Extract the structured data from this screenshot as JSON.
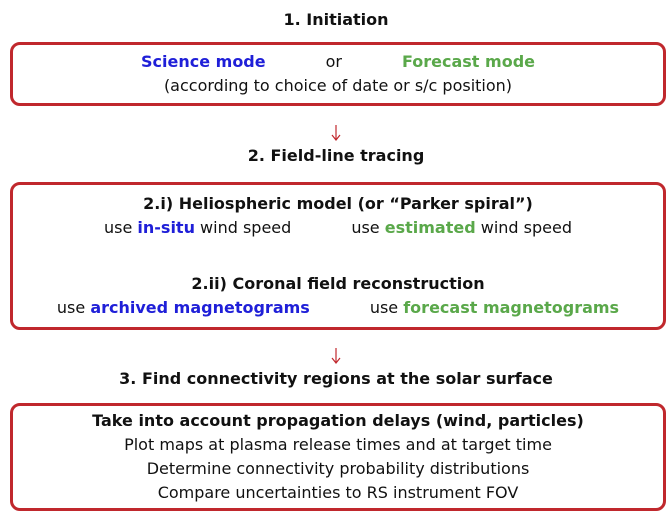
{
  "steps": [
    {
      "title": "1. Initiation",
      "paragraphs": [
        [
          [
            [
              {
                "text": "Science mode",
                "bold": true,
                "color": "#1f1fd8"
              }
            ],
            [
              {
                "text": "or"
              }
            ],
            [
              {
                "text": "Forecast mode",
                "bold": true,
                "color": "#5aa84a"
              }
            ]
          ],
          [
            [
              {
                "text": "(according to choice of date or s/c position)"
              }
            ]
          ]
        ]
      ]
    },
    {
      "title": "2. Field-line tracing",
      "paragraphs": [
        [
          [
            [
              {
                "text": "2.i) Heliospheric model (or “Parker spiral”)",
                "bold": true
              }
            ]
          ],
          [
            [
              {
                "text": "use "
              },
              {
                "text": "in-situ",
                "bold": true,
                "color": "#1f1fd8"
              },
              {
                "text": " wind speed"
              }
            ],
            [
              {
                "text": "use "
              },
              {
                "text": "estimated",
                "bold": true,
                "color": "#5aa84a"
              },
              {
                "text": " wind speed"
              }
            ]
          ]
        ],
        [
          [
            [
              {
                "text": "2.ii) Coronal field reconstruction",
                "bold": true
              }
            ]
          ],
          [
            [
              {
                "text": "use "
              },
              {
                "text": "archived magnetograms",
                "bold": true,
                "color": "#1f1fd8"
              }
            ],
            [
              {
                "text": "use "
              },
              {
                "text": "forecast magnetograms",
                "bold": true,
                "color": "#5aa84a"
              }
            ]
          ]
        ]
      ]
    },
    {
      "title": "3. Find connectivity regions at the solar surface",
      "paragraphs": [
        [
          [
            [
              {
                "text": "Take into account propagation delays (wind, particles)",
                "bold": true
              }
            ]
          ],
          [
            [
              {
                "text": "Plot maps at plasma release times and at target time"
              }
            ]
          ],
          [
            [
              {
                "text": "Determine connectivity probability distributions"
              }
            ]
          ],
          [
            [
              {
                "text": "Compare uncertainties to RS instrument FOV"
              }
            ]
          ]
        ]
      ]
    }
  ]
}
